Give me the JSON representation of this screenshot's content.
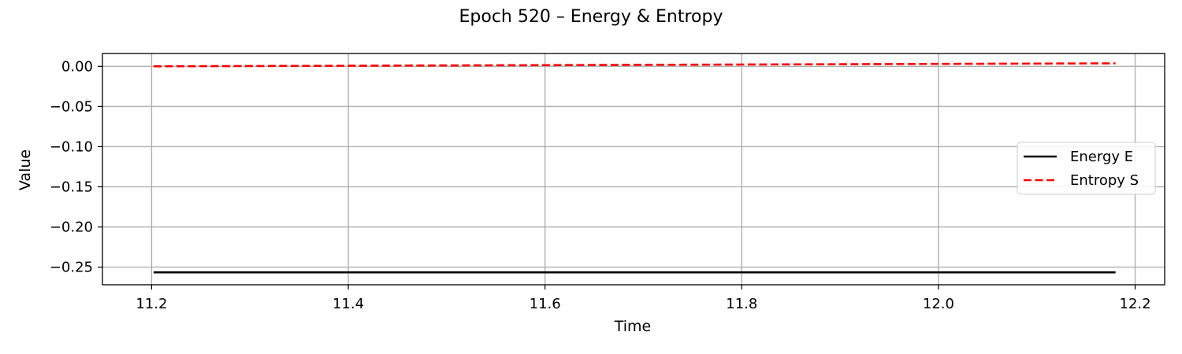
{
  "chart_data": {
    "type": "line",
    "title": "Epoch 520 – Energy & Entropy",
    "xlabel": "Time",
    "ylabel": "Value",
    "xlim": [
      11.15,
      12.23
    ],
    "ylim": [
      -0.272,
      0.016
    ],
    "xticks": [
      11.2,
      11.4,
      11.6,
      11.8,
      12.0,
      12.2
    ],
    "xtick_labels": [
      "11.2",
      "11.4",
      "11.6",
      "11.8",
      "12.0",
      "12.2"
    ],
    "yticks": [
      0.0,
      -0.05,
      -0.1,
      -0.15,
      -0.2,
      -0.25
    ],
    "ytick_labels": [
      "0.00",
      "−0.05",
      "−0.10",
      "−0.15",
      "−0.20",
      "−0.25"
    ],
    "grid": true,
    "legend_position": "center-right",
    "series": [
      {
        "name": "Energy E",
        "color": "#000000",
        "style": "solid",
        "x": [
          11.202,
          11.4,
          11.6,
          11.8,
          12.0,
          12.18
        ],
        "y": [
          -0.2565,
          -0.2565,
          -0.2565,
          -0.2565,
          -0.2565,
          -0.2565
        ]
      },
      {
        "name": "Entropy S",
        "color": "#ff0000",
        "style": "dashed",
        "x": [
          11.202,
          11.4,
          11.6,
          11.8,
          12.0,
          12.18
        ],
        "y": [
          0.0,
          0.0007,
          0.0015,
          0.0023,
          0.0031,
          0.0038
        ]
      }
    ]
  }
}
